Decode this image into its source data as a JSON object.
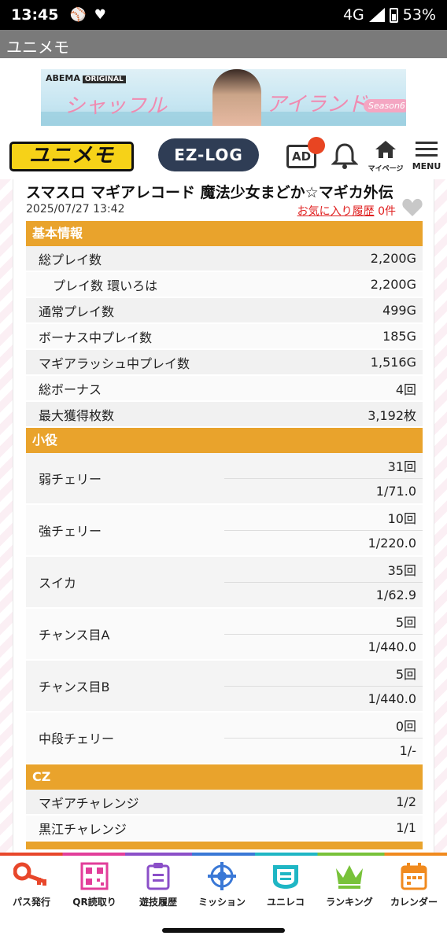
{
  "status_bar": {
    "time": "13:45",
    "network": "4G",
    "battery": "53%"
  },
  "app": {
    "title": "ユニメモ"
  },
  "banner": {
    "brand": "ABEMA",
    "badge": "ORIGINAL",
    "title_left": "シャッフル",
    "title_right": "アイランド",
    "season": "Season6"
  },
  "nav": {
    "logo": "ユニメモ",
    "ezlog": "EZ-LOG",
    "ad": "AD",
    "mypage": "マイページ",
    "menu": "MENU"
  },
  "record": {
    "title": "スマスロ マギアレコード 魔法少女まどか☆マギカ外伝",
    "date": "2025/07/27 13:42",
    "favorite_link": "お気に入り履歴",
    "favorite_count": "0件"
  },
  "sections": {
    "basic": {
      "header": "基本情報",
      "rows": [
        {
          "label": "総プレイ数",
          "value": "2,200G"
        },
        {
          "label": "プレイ数 環いろは",
          "value": "2,200G"
        },
        {
          "label": "通常プレイ数",
          "value": "499G"
        },
        {
          "label": "ボーナス中プレイ数",
          "value": "185G"
        },
        {
          "label": "マギアラッシュ中プレイ数",
          "value": "1,516G"
        },
        {
          "label": "総ボーナス",
          "value": "4回"
        },
        {
          "label": "最大獲得枚数",
          "value": "3,192枚"
        }
      ]
    },
    "koyaku": {
      "header": "小役",
      "rows": [
        {
          "label": "弱チェリー",
          "count": "31回",
          "prob": "1/71.0"
        },
        {
          "label": "強チェリー",
          "count": "10回",
          "prob": "1/220.0"
        },
        {
          "label": "スイカ",
          "count": "35回",
          "prob": "1/62.9"
        },
        {
          "label": "チャンス目A",
          "count": "5回",
          "prob": "1/440.0"
        },
        {
          "label": "チャンス目B",
          "count": "5回",
          "prob": "1/440.0"
        },
        {
          "label": "中段チェリー",
          "count": "0回",
          "prob": "1/-"
        }
      ]
    },
    "cz": {
      "header": "CZ",
      "rows": [
        {
          "label": "マギアチャレンジ",
          "value": "1/2"
        },
        {
          "label": "黒江チャレンジ",
          "value": "1/1"
        }
      ]
    }
  },
  "tabs": [
    {
      "label": "パス発行",
      "icon": "key-icon",
      "color": "#e8472b"
    },
    {
      "label": "QR読取り",
      "icon": "qr-icon",
      "color": "#e23e9a"
    },
    {
      "label": "遊技履歴",
      "icon": "clipboard-icon",
      "color": "#8b4fc8"
    },
    {
      "label": "ミッション",
      "icon": "target-icon",
      "color": "#3a78d6"
    },
    {
      "label": "ユニレコ",
      "icon": "unireco-icon",
      "color": "#1fb6c4"
    },
    {
      "label": "ランキング",
      "icon": "crown-icon",
      "color": "#78c23a"
    },
    {
      "label": "カレンダー",
      "icon": "calendar-icon",
      "color": "#f08a1e"
    }
  ]
}
